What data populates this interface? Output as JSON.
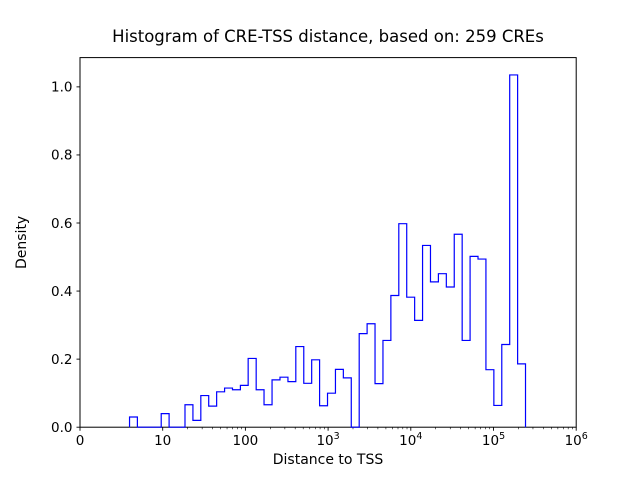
{
  "chart_data": {
    "type": "histogram-step",
    "title": "Histogram of CRE-TSS distance, based on: 259 CREs",
    "xlabel": "Distance to TSS",
    "ylabel": "Density",
    "x_scale": "symlog",
    "linthresh": 10,
    "xlim": [
      0,
      1000000
    ],
    "ylim": [
      0,
      1.086
    ],
    "grid": "off",
    "legend": "none",
    "line_color": "#0000ff",
    "axis_color": "#000000",
    "background_color": "#ffffff",
    "y_ticks": [
      {
        "value": 0.0,
        "label": "0.0"
      },
      {
        "value": 0.2,
        "label": "0.2"
      },
      {
        "value": 0.4,
        "label": "0.4"
      },
      {
        "value": 0.6,
        "label": "0.6"
      },
      {
        "value": 0.8,
        "label": "0.8"
      },
      {
        "value": 1.0,
        "label": "1.0"
      }
    ],
    "x_ticks": [
      {
        "value": 0,
        "label": "0",
        "exp": ""
      },
      {
        "value": 10,
        "label": "10",
        "exp": ""
      },
      {
        "value": 100,
        "label": "100",
        "exp": ""
      },
      {
        "value": 1000,
        "label": "10",
        "exp": "3"
      },
      {
        "value": 10000,
        "label": "10",
        "exp": "4"
      },
      {
        "value": 100000,
        "label": "10",
        "exp": "5"
      },
      {
        "value": 1000000,
        "label": "10",
        "exp": "6"
      }
    ],
    "bin_edges": [
      5.99,
      6.94,
      7.9,
      8.86,
      9.82,
      11.95,
      14.9,
      18.6,
      23.2,
      28.9,
      36.0,
      44.9,
      56.0,
      69.8,
      87.0,
      108,
      135,
      168,
      210,
      262,
      327,
      407,
      508,
      633,
      789,
      984,
      1227,
      1529,
      1906,
      2377,
      2963,
      3694,
      4606,
      5742,
      7159,
      8926,
      11128,
      13874,
      17298,
      21567,
      26889,
      33524,
      41797,
      52112,
      64972,
      81006,
      100996,
      125918,
      156990,
      195731,
      243830
    ],
    "densities": [
      0.03,
      0,
      0,
      0,
      0.04,
      0,
      0,
      0.066,
      0.02,
      0.093,
      0.062,
      0.104,
      0.115,
      0.11,
      0.123,
      0.202,
      0.11,
      0.066,
      0.139,
      0.147,
      0.134,
      0.237,
      0.129,
      0.198,
      0.063,
      0.1,
      0.17,
      0.145,
      0,
      0.275,
      0.304,
      0.128,
      0.255,
      0.387,
      0.598,
      0.382,
      0.314,
      0.534,
      0.427,
      0.451,
      0.412,
      0.567,
      0.255,
      0.502,
      0.494,
      0.169,
      0.064,
      0.243,
      1.035,
      0.186
    ]
  }
}
